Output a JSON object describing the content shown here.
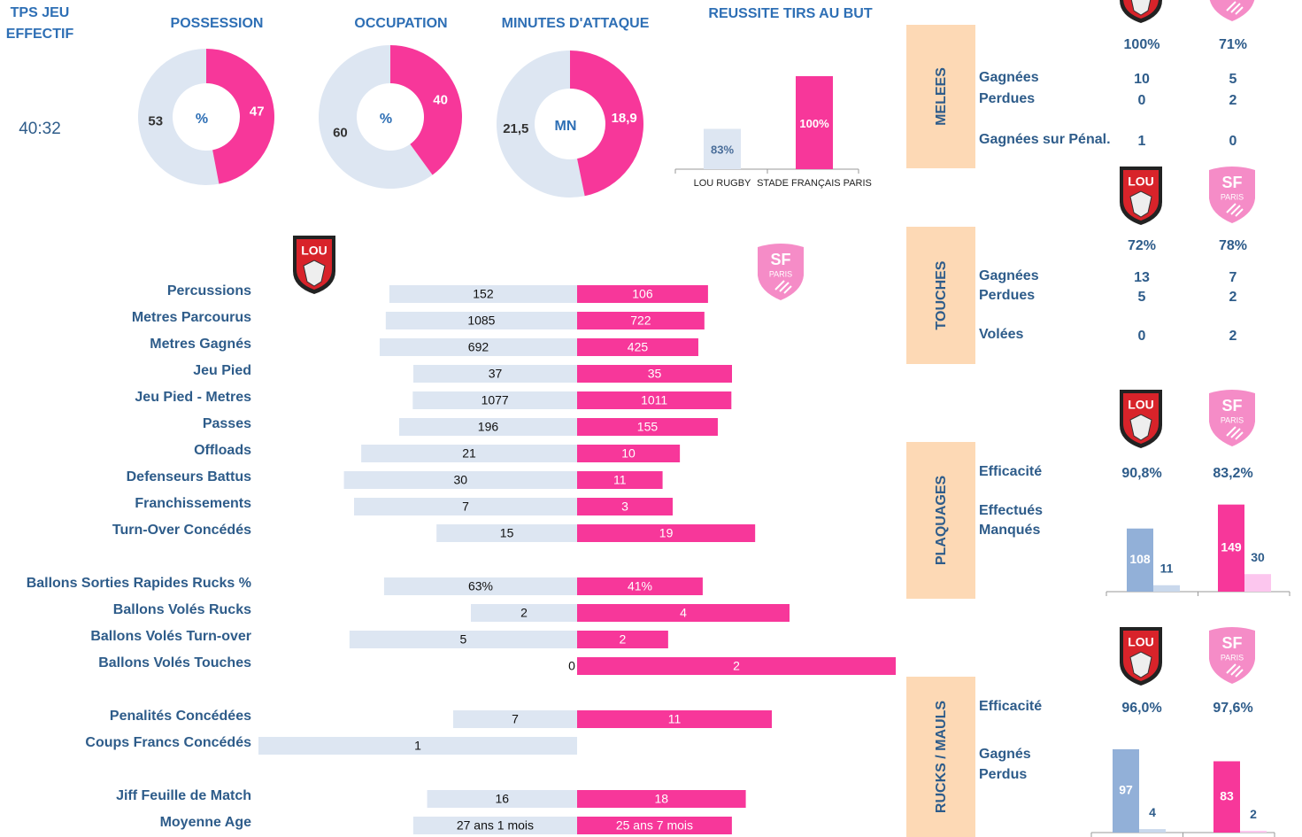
{
  "tps_jeu": {
    "title_lines": [
      "TPS JEU",
      "EFFECTIF"
    ],
    "value": "40:32"
  },
  "logos": {
    "lou": "LOU",
    "sf": "SF",
    "sf_sub": "PARIS"
  },
  "colors": {
    "lou": "#dde6f2",
    "sf": "#f7379a"
  },
  "donuts": [
    {
      "title": "POSSESSION",
      "unit": "%",
      "values": [
        53,
        47
      ]
    },
    {
      "title": "OCCUPATION",
      "unit": "%",
      "values": [
        60,
        40
      ]
    },
    {
      "title": "MINUTES D'ATTAQUE",
      "unit": "MN",
      "values": [
        21.5,
        18.9
      ],
      "value_labels": [
        "21,5",
        "18,9"
      ]
    }
  ],
  "tirs": {
    "title": "REUSSITE TIRS AU BUT",
    "categories": [
      "LOU RUGBY",
      "STADE FRANÇAIS PARIS"
    ],
    "values": [
      83,
      100
    ],
    "value_labels": [
      "83%",
      "100%"
    ],
    "colors": [
      "#dde6f2",
      "#f7379a"
    ],
    "ylim": [
      70,
      100
    ]
  },
  "stats": [
    [
      {
        "label": "Percussions",
        "values": [
          152,
          106
        ]
      },
      {
        "label": "Metres Parcourus",
        "values": [
          1085,
          722
        ]
      },
      {
        "label": "Metres Gagnés",
        "values": [
          692,
          425
        ]
      },
      {
        "label": "Jeu Pied",
        "values": [
          37,
          35
        ]
      },
      {
        "label": "Jeu Pied - Metres",
        "values": [
          1077,
          1011
        ]
      },
      {
        "label": "Passes",
        "values": [
          196,
          155
        ]
      },
      {
        "label": "Offloads",
        "values": [
          21,
          10
        ]
      },
      {
        "label": "Defenseurs Battus",
        "values": [
          30,
          11
        ]
      },
      {
        "label": "Franchissements",
        "values": [
          7,
          3
        ]
      },
      {
        "label": "Turn-Over Concédés",
        "values": [
          15,
          19
        ]
      }
    ],
    [
      {
        "label": "Ballons Sorties Rapides Rucks %",
        "values": [
          63,
          41
        ],
        "value_labels": [
          "63%",
          "41%"
        ]
      },
      {
        "label": "Ballons Volés Rucks",
        "values": [
          2,
          4
        ]
      },
      {
        "label": "Ballons Volés Turn-over",
        "values": [
          5,
          2
        ]
      },
      {
        "label": "Ballons Volés Touches",
        "values": [
          0,
          2
        ]
      }
    ],
    [
      {
        "label": "Penalités Concédées",
        "values": [
          7,
          11
        ]
      },
      {
        "label": "Coups Francs Concédés",
        "values": [
          1,
          0
        ]
      }
    ],
    [
      {
        "label": "Jiff Feuille de Match",
        "values": [
          16,
          18
        ]
      },
      {
        "label": "Moyenne Age",
        "values": [
          325,
          307
        ],
        "value_labels": [
          "27 ans 1 mois",
          "25 ans 7 mois"
        ]
      }
    ]
  ],
  "panels": [
    {
      "title": "MELEES",
      "pcts": [
        "100%",
        "71%"
      ],
      "rows": [
        {
          "label": "Gagnées",
          "values": [
            "10",
            "5"
          ]
        },
        {
          "label": "Perdues",
          "values": [
            "0",
            "2"
          ]
        },
        {
          "label": "Gagnées sur Pénal.",
          "values": [
            "1",
            "0"
          ]
        }
      ]
    },
    {
      "title": "TOUCHES",
      "pcts": [
        "72%",
        "78%"
      ],
      "rows": [
        {
          "label": "Gagnées",
          "values": [
            "13",
            "7"
          ]
        },
        {
          "label": "Perdues",
          "values": [
            "5",
            "2"
          ]
        },
        {
          "label": "Volées",
          "values": [
            "0",
            "2"
          ]
        }
      ]
    },
    {
      "title": "PLAQUAGES",
      "rows": [
        {
          "label": "Efficacité",
          "values": [
            "90,8%",
            "83,2%"
          ]
        }
      ],
      "bar_labels": [
        "Effectués",
        "Manqués"
      ],
      "bars": [
        [
          108,
          11
        ],
        [
          149,
          30
        ]
      ],
      "bar_colors": [
        [
          "#92b0d8",
          "#c9d8ec"
        ],
        [
          "#f7379a",
          "#fcc6ee"
        ]
      ]
    },
    {
      "title": "RUCKS / MAULS",
      "rows": [
        {
          "label": "Efficacité",
          "values": [
            "96,0%",
            "97,6%"
          ]
        }
      ],
      "bar_labels": [
        "Gagnés",
        "Perdus"
      ],
      "bars": [
        [
          97,
          4
        ],
        [
          83,
          2
        ]
      ],
      "bar_colors": [
        [
          "#92b0d8",
          "#c9d8ec"
        ],
        [
          "#f7379a",
          "#fcc6ee"
        ]
      ]
    }
  ]
}
